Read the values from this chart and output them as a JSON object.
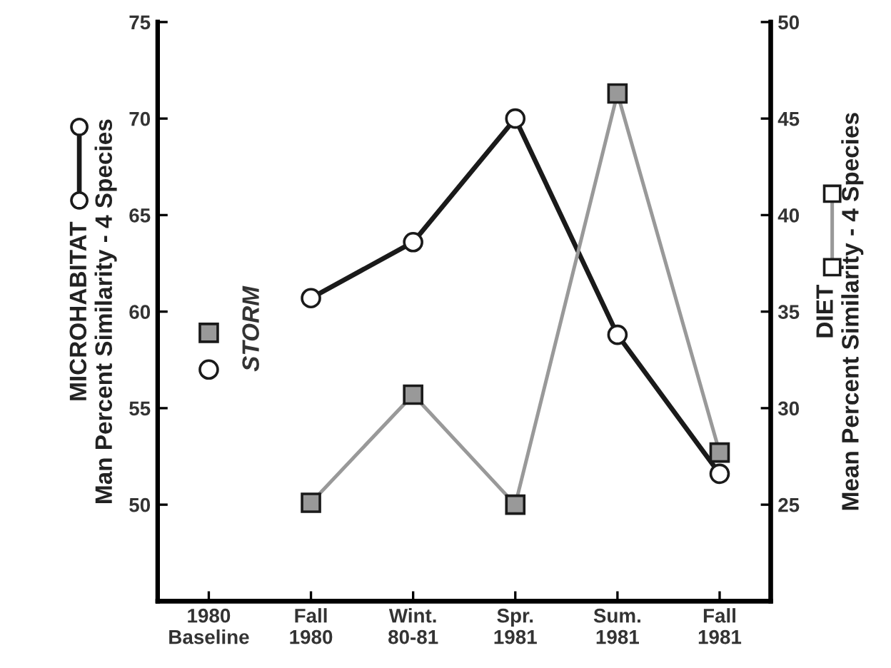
{
  "chart_data": {
    "type": "line",
    "ylabel": "MICROHABITAT\nMan Percent Similarity - 4 Species",
    "y2label": "DIET\nMean Percent Similarity - 4 Species",
    "annotations": [
      "STORM"
    ],
    "categories": [
      "1980\nBaseline",
      "Fall\n1980",
      "Wint.\n80-81",
      "Spr.\n1981",
      "Sum.\n1981",
      "Fall\n1981"
    ],
    "ylim": [
      45,
      75
    ],
    "yticks": [
      50,
      55,
      60,
      65,
      70,
      75
    ],
    "y2lim": [
      20,
      50
    ],
    "y2ticks": [
      25,
      30,
      35,
      40,
      45,
      50
    ],
    "line_style": "solid",
    "series": [
      {
        "axis": "y",
        "marker": "circle",
        "color": "#1a1a1a",
        "values": [
          null,
          60.7,
          63.6,
          70,
          58.8,
          51.6
        ]
      },
      {
        "axis": "y2",
        "marker": "square",
        "color": "#999999",
        "values": [
          null,
          25.1,
          30.7,
          25.0,
          46.3,
          27.7
        ]
      },
      {
        "type": "scatter",
        "axis": "y",
        "marker": "circle",
        "color": "#1a1a1a",
        "values": [
          57,
          null,
          null,
          null,
          null,
          null
        ]
      },
      {
        "type": "scatter",
        "axis": "y2",
        "marker": "square",
        "color": "#999999",
        "values": [
          33.9,
          null,
          null,
          null,
          null,
          null
        ]
      }
    ]
  }
}
